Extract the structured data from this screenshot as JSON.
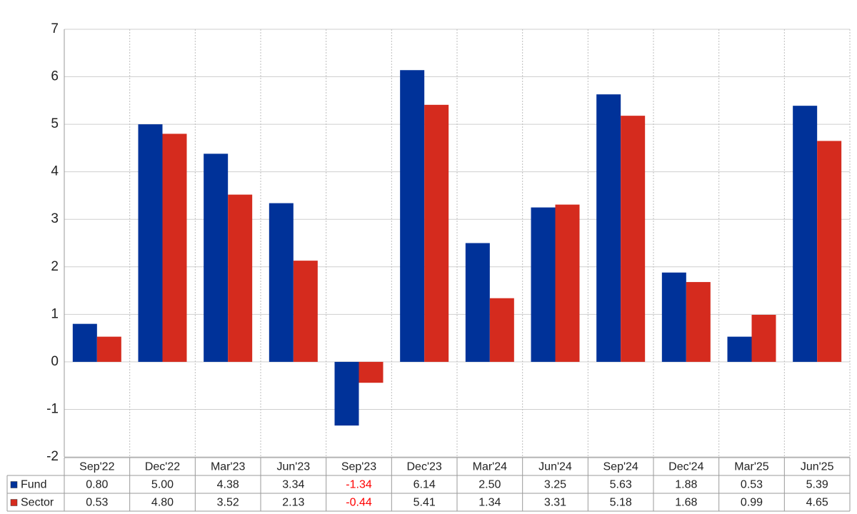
{
  "chart_data": {
    "type": "bar",
    "categories": [
      "Sep'22",
      "Dec'22",
      "Mar'23",
      "Jun'23",
      "Sep'23",
      "Dec'23",
      "Mar'24",
      "Jun'24",
      "Sep'24",
      "Dec'24",
      "Mar'25",
      "Jun'25"
    ],
    "series": [
      {
        "name": "Fund",
        "color": "#003299",
        "values": [
          0.8,
          5.0,
          4.38,
          3.34,
          -1.34,
          6.14,
          2.5,
          3.25,
          5.63,
          1.88,
          0.53,
          5.39
        ],
        "value_labels": [
          "0.80",
          "5.00",
          "4.38",
          "3.34",
          "-1.34",
          "6.14",
          "2.50",
          "3.25",
          "5.63",
          "1.88",
          "0.53",
          "5.39"
        ]
      },
      {
        "name": "Sector",
        "color": "#d52b1e",
        "values": [
          0.53,
          4.8,
          3.52,
          2.13,
          -0.44,
          5.41,
          1.34,
          3.31,
          5.18,
          1.68,
          0.99,
          4.65
        ],
        "value_labels": [
          "0.53",
          "4.80",
          "3.52",
          "2.13",
          "-0.44",
          "5.41",
          "1.34",
          "3.31",
          "5.18",
          "1.68",
          "0.99",
          "4.65"
        ]
      }
    ],
    "ylim": [
      -2,
      7
    ],
    "yticks": [
      -2,
      -1,
      0,
      1,
      2,
      3,
      4,
      5,
      6,
      7
    ],
    "grid": true,
    "negative_label_color": "#ff0000"
  }
}
